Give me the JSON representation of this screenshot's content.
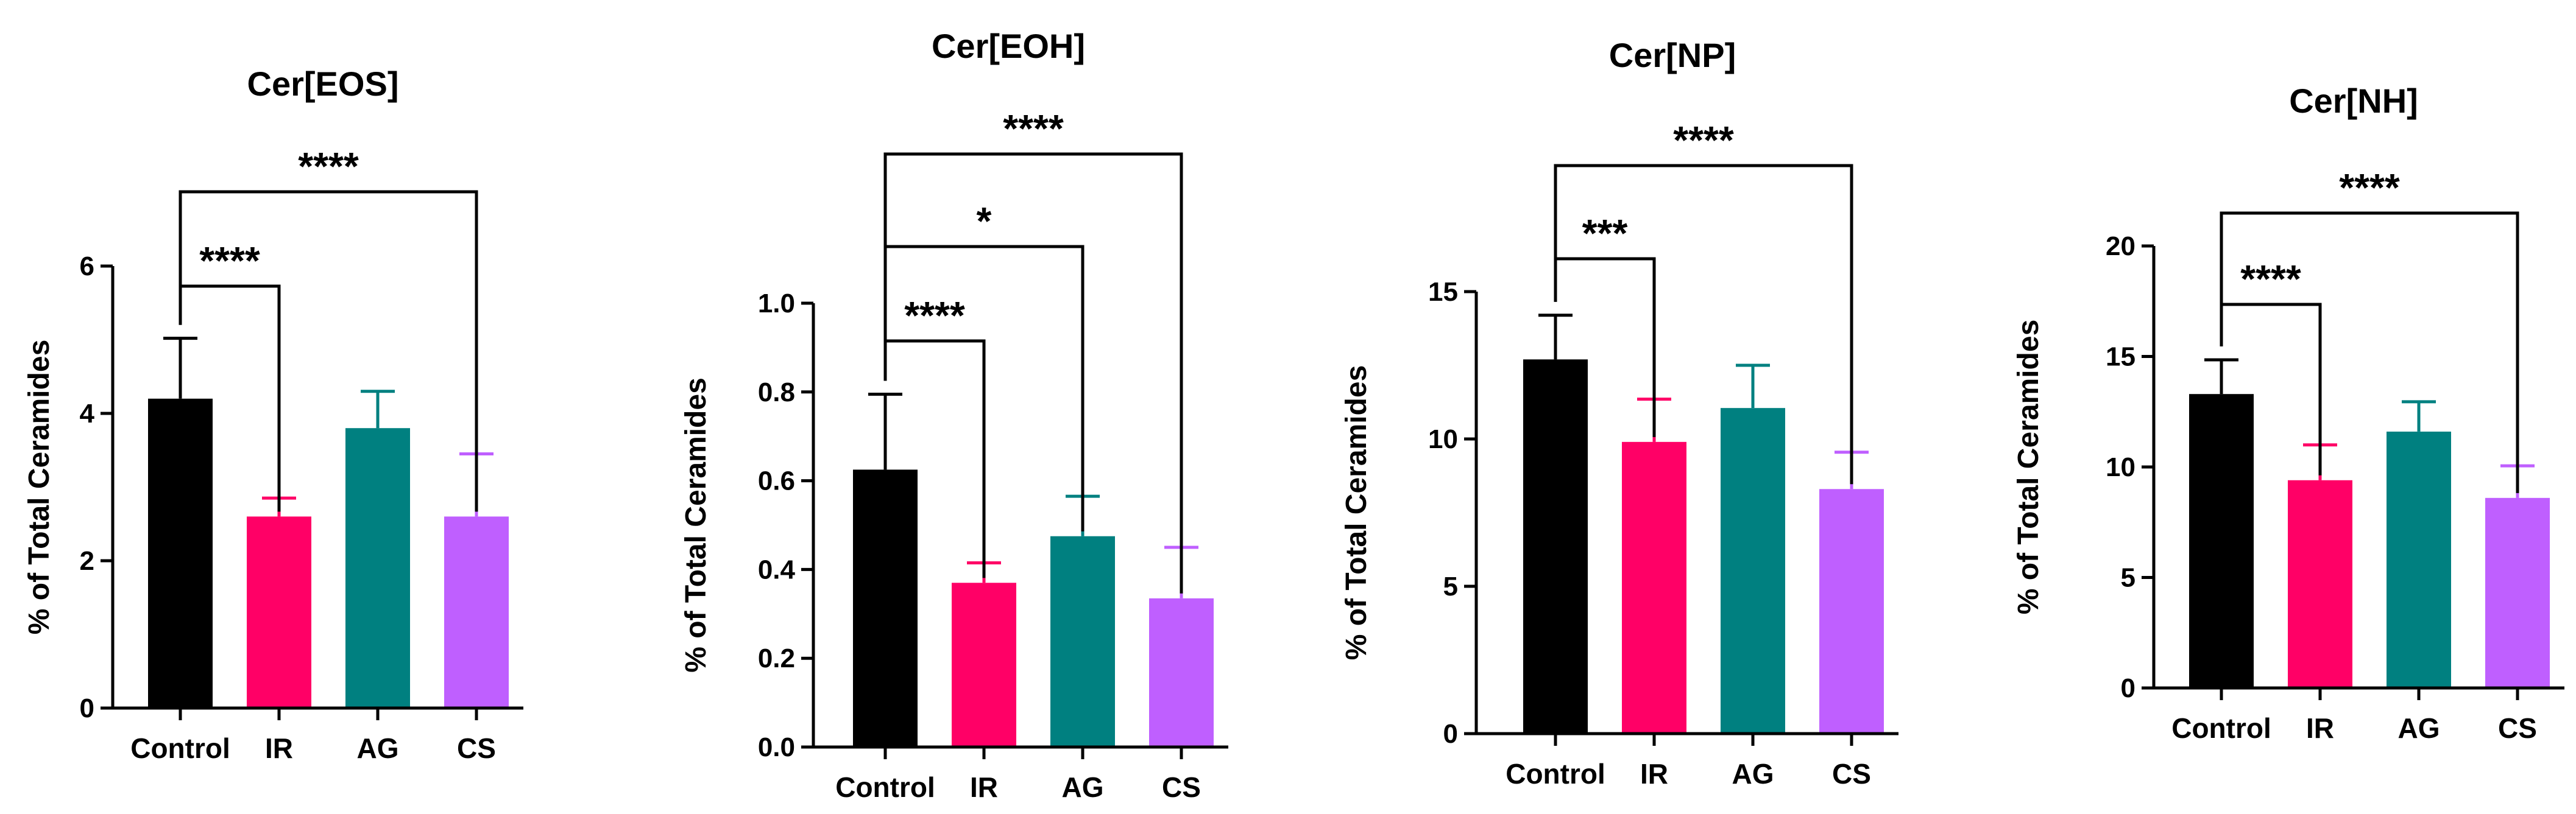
{
  "colors": {
    "Control": "#000000",
    "IR": "#ff0066",
    "AG": "#008080",
    "CS": "#bf5fff"
  },
  "chart_data": [
    {
      "type": "bar",
      "title": "Cer[EOS]",
      "ylabel": "% of Total Ceramides",
      "xlabel": "",
      "categories": [
        "Control",
        "IR",
        "AG",
        "CS"
      ],
      "values": [
        4.2,
        2.6,
        3.8,
        2.6
      ],
      "errors": [
        0.82,
        0.25,
        0.5,
        0.85
      ],
      "ylim": [
        0,
        6
      ],
      "yticks": [
        0,
        2,
        4,
        6
      ],
      "ytick_labels": [
        "0",
        "2",
        "4",
        "6"
      ],
      "comparisons": [
        {
          "from": "Control",
          "to": "IR",
          "label": "****"
        },
        {
          "from": "Control",
          "to": "CS",
          "label": "****"
        }
      ]
    },
    {
      "type": "bar",
      "title": "Cer[EOH]",
      "ylabel": "% of Total Ceramides",
      "xlabel": "",
      "categories": [
        "Control",
        "IR",
        "AG",
        "CS"
      ],
      "values": [
        0.625,
        0.37,
        0.475,
        0.335
      ],
      "errors": [
        0.17,
        0.045,
        0.09,
        0.115
      ],
      "ylim": [
        0,
        1.0
      ],
      "yticks": [
        0,
        0.2,
        0.4,
        0.6,
        0.8,
        1.0
      ],
      "ytick_labels": [
        "0.0",
        "0.2",
        "0.4",
        "0.6",
        "0.8",
        "1.0"
      ],
      "comparisons": [
        {
          "from": "Control",
          "to": "IR",
          "label": "****"
        },
        {
          "from": "Control",
          "to": "AG",
          "label": "*"
        },
        {
          "from": "Control",
          "to": "CS",
          "label": "****"
        }
      ]
    },
    {
      "type": "bar",
      "title": "Cer[NP]",
      "ylabel": "% of Total Ceramides",
      "xlabel": "",
      "categories": [
        "Control",
        "IR",
        "AG",
        "CS"
      ],
      "values": [
        12.7,
        9.9,
        11.05,
        8.3
      ],
      "errors": [
        1.5,
        1.45,
        1.45,
        1.25
      ],
      "ylim": [
        0,
        15
      ],
      "yticks": [
        0,
        5,
        10,
        15
      ],
      "ytick_labels": [
        "0",
        "5",
        "10",
        "15"
      ],
      "comparisons": [
        {
          "from": "Control",
          "to": "IR",
          "label": "***"
        },
        {
          "from": "Control",
          "to": "CS",
          "label": "****"
        }
      ]
    },
    {
      "type": "bar",
      "title": "Cer[NH]",
      "ylabel": "% of Total Ceramides",
      "xlabel": "",
      "categories": [
        "Control",
        "IR",
        "AG",
        "CS"
      ],
      "values": [
        13.3,
        9.4,
        11.6,
        8.6
      ],
      "errors": [
        1.55,
        1.6,
        1.35,
        1.45
      ],
      "ylim": [
        0,
        20
      ],
      "yticks": [
        0,
        5,
        10,
        15,
        20
      ],
      "ytick_labels": [
        "0",
        "5",
        "10",
        "15",
        "20"
      ],
      "comparisons": [
        {
          "from": "Control",
          "to": "IR",
          "label": "****"
        },
        {
          "from": "Control",
          "to": "CS",
          "label": "****"
        }
      ]
    }
  ]
}
